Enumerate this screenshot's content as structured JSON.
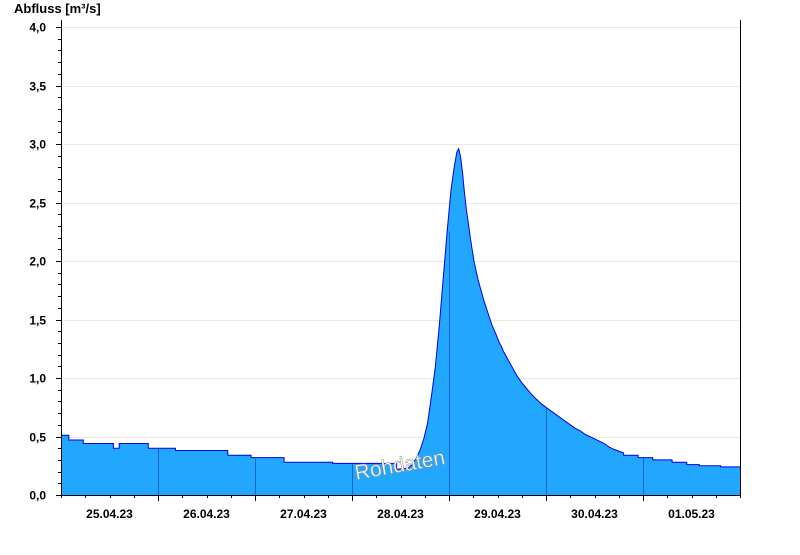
{
  "chart_data": {
    "type": "area",
    "ylabel": "Abfluss [m³/s]",
    "watermark": "Rohdaten",
    "y_ticks": [
      "0,0",
      "0,5",
      "1,0",
      "1,5",
      "2,0",
      "2,5",
      "3,0",
      "3,5",
      "4,0"
    ],
    "ylim": [
      0,
      4.06
    ],
    "x_unit": "day",
    "xlim": [
      -0.5,
      6.5
    ],
    "day_labels": [
      "25.04.23",
      "26.04.23",
      "27.04.23",
      "28.04.23",
      "29.04.23",
      "30.04.23",
      "01.05.23"
    ],
    "grid": "horizontal",
    "colors": {
      "fill": "#22a7ff",
      "line": "#0000e6",
      "grid": "#e8e8e8",
      "axis": "#000000"
    },
    "series": [
      {
        "x": [
          -0.5,
          -0.42,
          -0.42,
          -0.27,
          -0.27,
          0.04,
          0.04,
          0.1,
          0.1,
          0.4,
          0.4,
          0.68,
          0.68,
          1.22,
          1.22,
          1.46,
          1.46,
          1.8,
          1.8,
          2.3,
          2.3,
          2.96,
          2.96,
          3.08,
          3.12,
          3.16,
          3.2,
          3.24,
          3.28,
          3.32,
          3.36,
          3.4,
          3.44,
          3.48,
          3.52,
          3.55,
          3.58,
          3.6,
          3.62,
          3.64,
          3.66,
          3.68,
          3.7,
          3.72,
          3.74,
          3.76,
          3.78,
          3.8,
          3.82,
          3.84,
          3.86,
          3.88,
          3.9,
          3.92,
          3.94,
          3.96,
          3.98,
          4.0,
          4.02,
          4.04,
          4.06,
          4.08,
          4.1,
          4.12,
          4.16,
          4.2,
          4.25,
          4.3,
          4.35,
          4.4,
          4.45,
          4.5,
          4.55,
          4.6,
          4.65,
          4.7,
          4.75,
          4.8,
          4.85,
          4.9,
          4.95,
          5.0,
          5.05,
          5.1,
          5.15,
          5.2,
          5.3,
          5.3,
          5.45,
          5.45,
          5.6,
          5.6,
          5.8,
          5.8,
          5.95,
          5.95,
          6.08,
          6.08,
          6.3,
          6.3,
          6.5
        ],
        "y": [
          0.51,
          0.51,
          0.47,
          0.47,
          0.44,
          0.44,
          0.4,
          0.4,
          0.44,
          0.44,
          0.4,
          0.4,
          0.38,
          0.38,
          0.34,
          0.34,
          0.32,
          0.32,
          0.28,
          0.28,
          0.27,
          0.27,
          0.22,
          0.23,
          0.26,
          0.31,
          0.38,
          0.48,
          0.62,
          0.85,
          1.1,
          1.45,
          1.85,
          2.25,
          2.6,
          2.78,
          2.93,
          2.96,
          2.89,
          2.75,
          2.58,
          2.43,
          2.32,
          2.2,
          2.09,
          1.99,
          1.91,
          1.84,
          1.78,
          1.72,
          1.66,
          1.61,
          1.56,
          1.51,
          1.46,
          1.42,
          1.38,
          1.34,
          1.3,
          1.27,
          1.23,
          1.2,
          1.17,
          1.14,
          1.08,
          1.02,
          0.96,
          0.91,
          0.86,
          0.82,
          0.78,
          0.75,
          0.72,
          0.69,
          0.66,
          0.63,
          0.6,
          0.57,
          0.55,
          0.52,
          0.5,
          0.48,
          0.46,
          0.44,
          0.41,
          0.39,
          0.36,
          0.34,
          0.34,
          0.32,
          0.32,
          0.3,
          0.3,
          0.28,
          0.28,
          0.26,
          0.26,
          0.25,
          0.25,
          0.24,
          0.24
        ]
      }
    ]
  }
}
